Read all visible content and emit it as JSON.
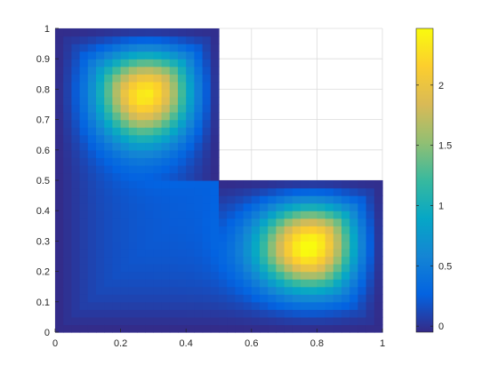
{
  "chart_data": {
    "type": "heatmap",
    "title": "",
    "xlabel": "",
    "ylabel": "",
    "xlim": [
      0,
      1
    ],
    "ylim": [
      0,
      1
    ],
    "grid": true,
    "colormap": "parula",
    "domain": "L-shaped: unit square minus the region x > 0.5, y > 0.5 (left blank)",
    "clim": [
      -0.05,
      2.47
    ],
    "xticks": [
      0,
      0.2,
      0.4,
      0.6,
      0.8,
      1
    ],
    "xtick_labels": [
      "0",
      "0.2",
      "0.4",
      "0.6",
      "0.8",
      "1"
    ],
    "yticks": [
      0,
      0.1,
      0.2,
      0.3,
      0.4,
      0.5,
      0.6,
      0.7,
      0.8,
      0.9,
      1
    ],
    "ytick_labels": [
      "0",
      "0.1",
      "0.2",
      "0.3",
      "0.4",
      "0.5",
      "0.6",
      "0.7",
      "0.8",
      "0.9",
      "1"
    ],
    "colorbar": {
      "location": "right",
      "ticks": [
        0,
        0.5,
        1,
        1.5,
        2
      ],
      "tick_labels": [
        "0",
        "0.5",
        "1",
        "1.5",
        "2"
      ]
    },
    "peaks": [
      {
        "x": 0.28,
        "y": 0.79,
        "value": 2.3
      },
      {
        "x": 0.78,
        "y": 0.29,
        "value": 2.45
      }
    ],
    "boundary_value": -0.05
  }
}
